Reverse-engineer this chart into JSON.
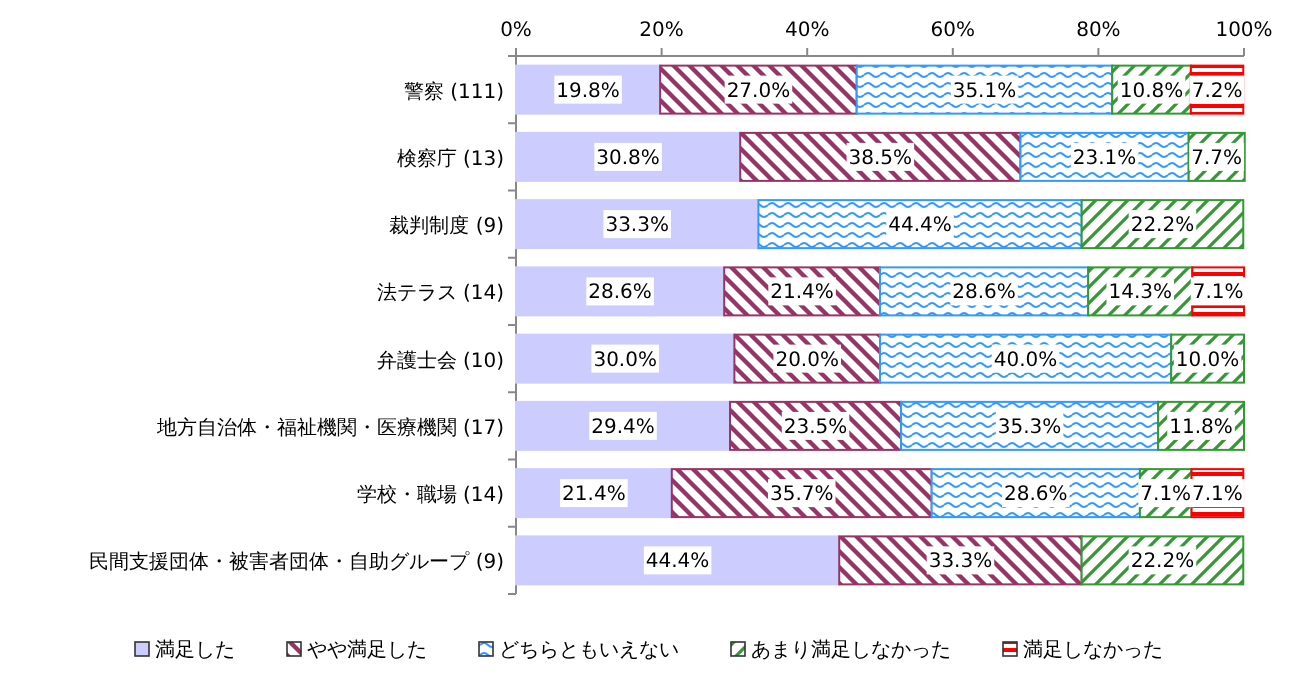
{
  "chart_data": {
    "type": "bar",
    "orientation": "horizontal",
    "stacked": true,
    "legend": "bottom",
    "categories": [
      "警察 (111)",
      "検察庁 (13)",
      "裁判制度 (9)",
      "法テラス (14)",
      "弁護士会 (10)",
      "地方自治体・福祉機関・医療機関 (17)",
      "学校・職場 (14)",
      "民間支援団体・被害者団体・自助グループ (9)"
    ],
    "xlim": [
      0,
      100
    ],
    "xticks": [
      {
        "value": 0,
        "label": "0%"
      },
      {
        "value": 20,
        "label": "20%"
      },
      {
        "value": 40,
        "label": "40%"
      },
      {
        "value": 60,
        "label": "60%"
      },
      {
        "value": 80,
        "label": "80%"
      },
      {
        "value": 100,
        "label": "100%"
      }
    ],
    "series": [
      {
        "name": "満足した",
        "color": "#ccccff",
        "values": [
          19.8,
          30.8,
          33.3,
          28.6,
          30.0,
          29.4,
          21.4,
          44.4
        ],
        "value_labels": [
          "19.8%",
          "30.8%",
          "33.3%",
          "28.6%",
          "30.0%",
          "29.4%",
          "21.4%",
          "44.4%"
        ]
      },
      {
        "name": "やや満足した",
        "color": "#993366",
        "values": [
          27.0,
          38.5,
          0,
          21.4,
          20.0,
          23.5,
          35.7,
          33.3
        ],
        "value_labels": [
          "27.0%",
          "38.5%",
          null,
          "21.4%",
          "20.0%",
          "23.5%",
          "35.7%",
          "33.3%"
        ]
      },
      {
        "name": "どちらともいえない",
        "color": "#3399ff",
        "values": [
          35.1,
          23.1,
          44.4,
          28.6,
          40.0,
          35.3,
          28.6,
          0
        ],
        "value_labels": [
          "35.1%",
          "23.1%",
          "44.4%",
          "28.6%",
          "40.0%",
          "35.3%",
          "28.6%",
          null
        ]
      },
      {
        "name": "あまり満足しなかった",
        "color": "#339933",
        "values": [
          10.8,
          7.7,
          22.2,
          14.3,
          10.0,
          11.8,
          7.1,
          22.2
        ],
        "value_labels": [
          "10.8%",
          "7.7%",
          "22.2%",
          "14.3%",
          "10.0%",
          "11.8%",
          "7.1%",
          "22.2%"
        ]
      },
      {
        "name": "満足しなかった",
        "color": "#ff0000",
        "values": [
          7.2,
          0,
          0,
          7.1,
          0,
          0,
          7.1,
          0
        ],
        "value_labels": [
          "7.2%",
          null,
          null,
          "7.1%",
          null,
          null,
          "7.1%",
          null
        ]
      }
    ]
  }
}
